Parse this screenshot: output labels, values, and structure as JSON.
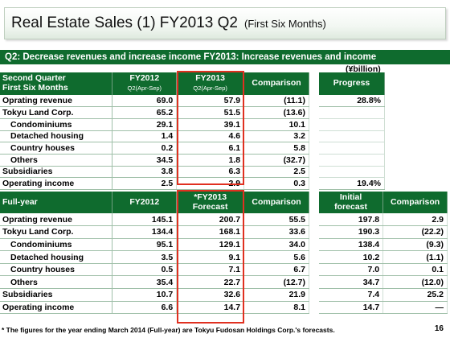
{
  "title": {
    "main": "Real Estate Sales (1) FY2013 Q2",
    "sub": "(First Six Months)"
  },
  "banner": "Q2: Decrease revenues and increase income FY2013: Increase revenues and income",
  "unit": "(¥billion)",
  "half": {
    "header": {
      "label_line1": "Second Quarter",
      "label_line2": "First Six Months",
      "fy2012": "FY2012",
      "fy2012_sub": "Q2(Apr-Sep)",
      "fy2013": "FY2013",
      "fy2013_sub": "Q2(Apr-Sep)",
      "comparison": "Comparison",
      "progress": "Progress"
    },
    "rows": [
      {
        "label": "Oprating revenue",
        "fy2012": "69.0",
        "fy2013": "57.9",
        "comp": "(11.1)",
        "progress": "28.8%"
      },
      {
        "label": "Tokyu Land Corp.",
        "fy2012": "65.2",
        "fy2013": "51.5",
        "comp": "(13.6)",
        "progress": ""
      },
      {
        "label": "Condominiums",
        "fy2012": "29.1",
        "fy2013": "39.1",
        "comp": "10.1",
        "progress": ""
      },
      {
        "label": "Detached housing",
        "fy2012": "1.4",
        "fy2013": "4.6",
        "comp": "3.2",
        "progress": ""
      },
      {
        "label": "Country houses",
        "fy2012": "0.2",
        "fy2013": "6.1",
        "comp": "5.8",
        "progress": ""
      },
      {
        "label": "Others",
        "fy2012": "34.5",
        "fy2013": "1.8",
        "comp": "(32.7)",
        "progress": ""
      },
      {
        "label": "Subsidiaries",
        "fy2012": "3.8",
        "fy2013": "6.3",
        "comp": "2.5",
        "progress": ""
      },
      {
        "label": "Operating income",
        "fy2012": "2.5",
        "fy2013": "2.9",
        "comp": "0.3",
        "progress": "19.4%"
      }
    ]
  },
  "full": {
    "header": {
      "label": "Full-year",
      "fy2012": "FY2012",
      "fy2013_line1": "*FY2013",
      "fy2013_line2": "Forecast",
      "comparison": "Comparison",
      "initial_line1": "Initial",
      "initial_line2": "forecast",
      "comparison2": "Comparison"
    },
    "rows": [
      {
        "label": "Oprating revenue",
        "fy2012": "145.1",
        "fy2013": "200.7",
        "comp": "55.5",
        "initial": "197.8",
        "comp2": "2.9"
      },
      {
        "label": "Tokyu Land Corp.",
        "fy2012": "134.4",
        "fy2013": "168.1",
        "comp": "33.6",
        "initial": "190.3",
        "comp2": "(22.2)"
      },
      {
        "label": "Condominiums",
        "fy2012": "95.1",
        "fy2013": "129.1",
        "comp": "34.0",
        "initial": "138.4",
        "comp2": "(9.3)"
      },
      {
        "label": "Detached housing",
        "fy2012": "3.5",
        "fy2013": "9.1",
        "comp": "5.6",
        "initial": "10.2",
        "comp2": "(1.1)"
      },
      {
        "label": "Country houses",
        "fy2012": "0.5",
        "fy2013": "7.1",
        "comp": "6.7",
        "initial": "7.0",
        "comp2": "0.1"
      },
      {
        "label": "Others",
        "fy2012": "35.4",
        "fy2013": "22.7",
        "comp": "(12.7)",
        "initial": "34.7",
        "comp2": "(12.0)"
      },
      {
        "label": "Subsidiaries",
        "fy2012": "10.7",
        "fy2013": "32.6",
        "comp": "21.9",
        "initial": "7.4",
        "comp2": "25.2"
      },
      {
        "label": "Operating income",
        "fy2012": "6.6",
        "fy2013": "14.7",
        "comp": "8.1",
        "initial": "14.7",
        "comp2": "—"
      }
    ]
  },
  "footnote": "* The figures for the year ending March 2014 (Full-year) are Tokyu Fudosan Holdings Corp.'s forecasts.",
  "page_number": "16",
  "colors": {
    "header_green": "#0f6b2e",
    "highlight_red": "#e03020"
  }
}
